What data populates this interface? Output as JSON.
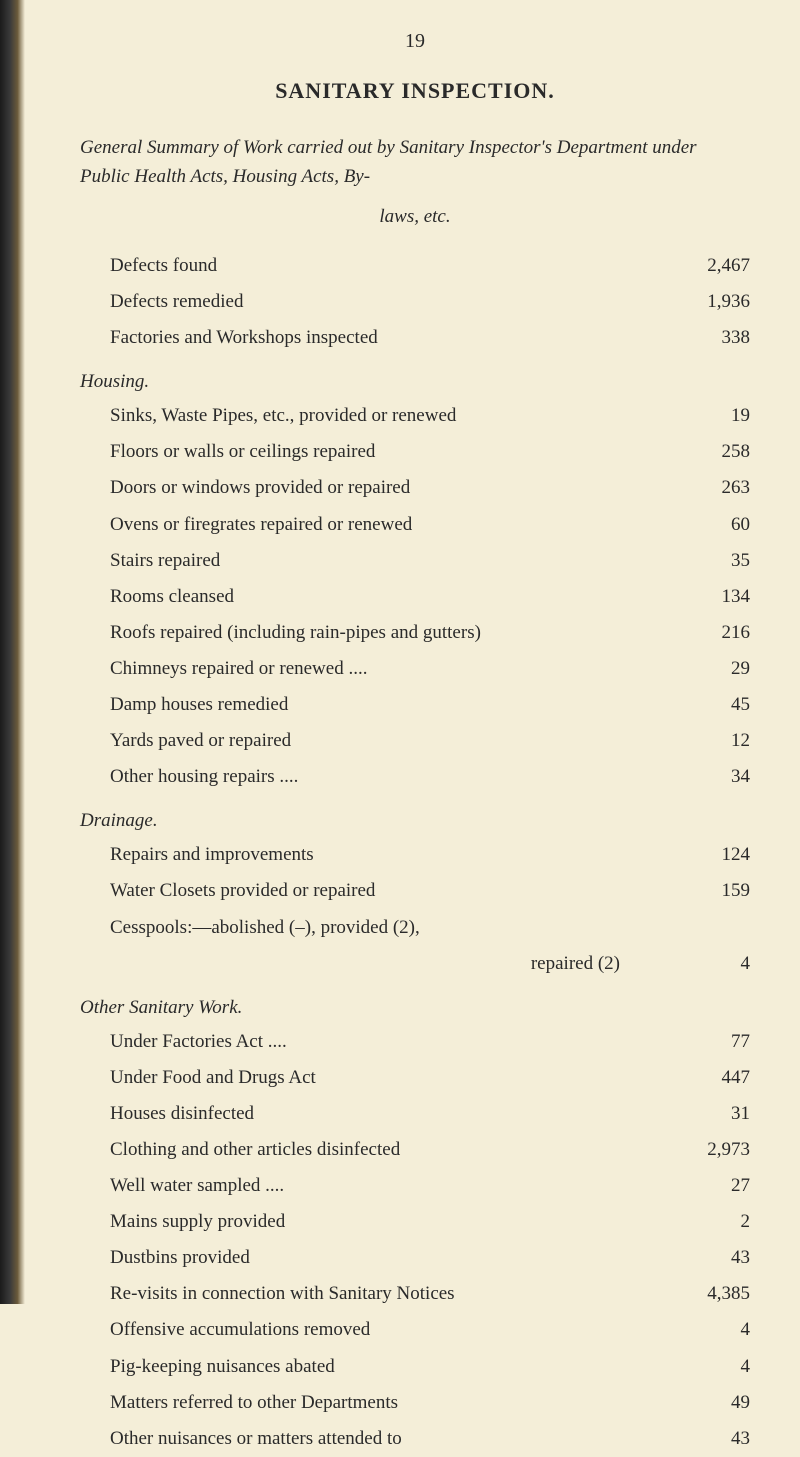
{
  "page_number": "19",
  "main_title": "SANITARY INSPECTION.",
  "intro_line1": "General Summary of Work carried out by Sanitary Inspector's Department under Public Health Acts, Housing Acts, By-",
  "intro_line2": "laws, etc.",
  "top_rows": [
    {
      "label": "Defects found",
      "value": "2,467"
    },
    {
      "label": "Defects remedied",
      "value": "1,936"
    },
    {
      "label": "Factories and Workshops inspected",
      "value": "338"
    }
  ],
  "housing_heading": "Housing.",
  "housing_rows": [
    {
      "label": "Sinks, Waste Pipes, etc., provided or renewed",
      "value": "19"
    },
    {
      "label": "Floors or walls or ceilings repaired",
      "value": "258"
    },
    {
      "label": "Doors or windows provided or repaired",
      "value": "263"
    },
    {
      "label": "Ovens or firegrates repaired or renewed",
      "value": "60"
    },
    {
      "label": "Stairs repaired",
      "value": "35"
    },
    {
      "label": "Rooms cleansed",
      "value": "134"
    },
    {
      "label": "Roofs repaired (including rain-pipes and gutters)",
      "value": "216"
    },
    {
      "label": "Chimneys repaired or renewed  ....",
      "value": "29"
    },
    {
      "label": "Damp houses remedied",
      "value": "45"
    },
    {
      "label": "Yards paved or repaired",
      "value": "12"
    },
    {
      "label": "Other housing repairs ....",
      "value": "34"
    }
  ],
  "drainage_heading": "Drainage.",
  "drainage_rows": [
    {
      "label": "Repairs and improvements",
      "value": "124"
    },
    {
      "label": "Water Closets provided or repaired",
      "value": "159"
    },
    {
      "label": "Cesspools:—abolished  (–),  provided  (2),",
      "value": ""
    }
  ],
  "repaired_row": {
    "label": "repaired  (2)",
    "value": "4"
  },
  "other_heading": "Other Sanitary Work.",
  "other_rows": [
    {
      "label": "Under Factories Act  ....",
      "value": "77"
    },
    {
      "label": "Under Food and Drugs Act",
      "value": "447"
    },
    {
      "label": "Houses disinfected",
      "value": "31"
    },
    {
      "label": "Clothing and other articles disinfected",
      "value": "2,973"
    },
    {
      "label": "Well water sampled  ....",
      "value": "27"
    },
    {
      "label": "Mains supply provided",
      "value": "2"
    },
    {
      "label": "Dustbins provided",
      "value": "43"
    },
    {
      "label": "Re-visits in connection with Sanitary Notices",
      "value": "4,385"
    },
    {
      "label": "Offensive accumulations removed",
      "value": "4"
    },
    {
      "label": "Pig-keeping nuisances abated",
      "value": "4"
    },
    {
      "label": "Matters referred to other Departments",
      "value": "49"
    },
    {
      "label": "Other nuisances or matters attended to",
      "value": "43"
    }
  ]
}
